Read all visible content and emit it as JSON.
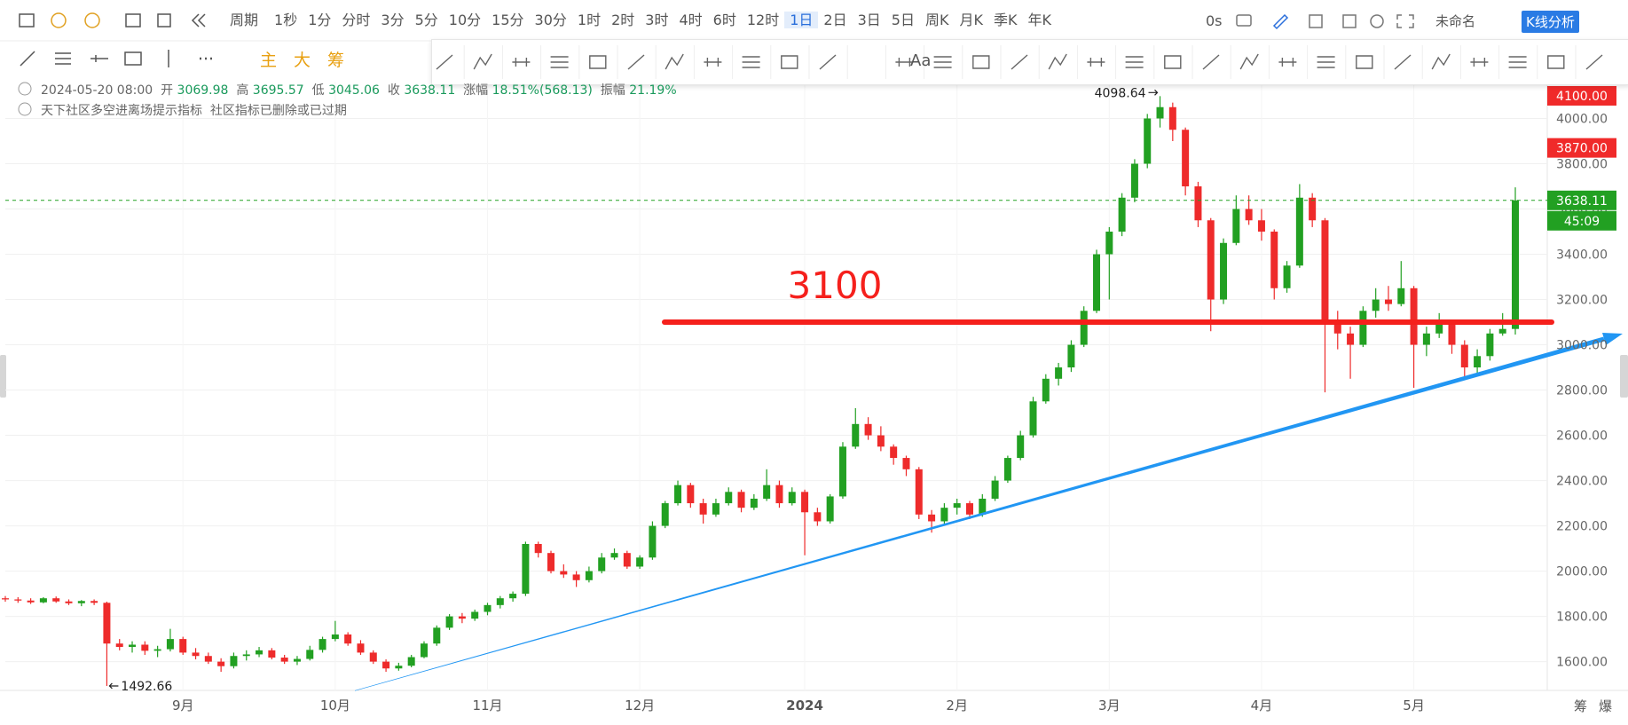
{
  "toolbar": {
    "period_label": "周期",
    "periods": [
      "1秒",
      "1分",
      "分时",
      "3分",
      "5分",
      "10分",
      "15分",
      "30分",
      "1时",
      "2时",
      "3时",
      "4时",
      "6时",
      "12时",
      "1日",
      "2日",
      "3日",
      "5日",
      "周K",
      "月K",
      "季K",
      "年K"
    ],
    "active_period": "1日",
    "timer": "0s",
    "workspace": "未命名",
    "analysis": "K线分析",
    "main": "主",
    "big": "大",
    "chips": "筹",
    "text_tool": "Aa"
  },
  "info": {
    "datetime": "2024-05-20 08:00",
    "open_label": "开",
    "open": "3069.98",
    "high_label": "高",
    "high": "3695.57",
    "low_label": "低",
    "low": "3045.06",
    "close_label": "收",
    "close": "3638.11",
    "change_label": "涨幅",
    "change": "18.51%(568.13)",
    "amp_label": "振幅",
    "amp": "21.19%",
    "indicator": "天下社区多空进离场提示指标",
    "indicator_note": "社区指标已删除或已过期"
  },
  "corner": [
    "筹",
    "爆"
  ],
  "chart_data": {
    "type": "candlestick",
    "up_color": "#22a022",
    "down_color": "#ee2b2b",
    "categories": [
      null,
      null,
      null,
      null,
      null,
      null,
      null,
      null,
      null,
      null,
      null,
      null,
      null,
      null,
      "9月",
      null,
      null,
      null,
      null,
      null,
      null,
      null,
      null,
      null,
      null,
      null,
      "10月",
      null,
      null,
      null,
      null,
      null,
      null,
      null,
      null,
      null,
      null,
      null,
      "11月",
      null,
      null,
      null,
      null,
      null,
      null,
      null,
      null,
      null,
      null,
      null,
      "12月",
      null,
      null,
      null,
      null,
      null,
      null,
      null,
      null,
      null,
      null,
      null,
      null,
      "2024",
      null,
      null,
      null,
      null,
      null,
      null,
      null,
      null,
      null,
      null,
      null,
      "2月",
      null,
      null,
      null,
      null,
      null,
      null,
      null,
      null,
      null,
      null,
      null,
      "3月",
      null,
      null,
      null,
      null,
      null,
      null,
      null,
      null,
      null,
      null,
      null,
      "4月",
      null,
      null,
      null,
      null,
      null,
      null,
      null,
      null,
      null,
      null,
      null,
      "5月",
      null,
      null,
      null,
      null,
      null,
      null,
      null,
      null
    ],
    "ohlc": [
      [
        1880,
        1890,
        1865,
        1875
      ],
      [
        1875,
        1885,
        1860,
        1870
      ],
      [
        1870,
        1880,
        1855,
        1862
      ],
      [
        1862,
        1885,
        1858,
        1880
      ],
      [
        1880,
        1888,
        1860,
        1866
      ],
      [
        1866,
        1875,
        1850,
        1858
      ],
      [
        1858,
        1872,
        1845,
        1868
      ],
      [
        1868,
        1875,
        1850,
        1860
      ],
      [
        1860,
        1865,
        1492.66,
        1680
      ],
      [
        1680,
        1700,
        1650,
        1665
      ],
      [
        1665,
        1690,
        1640,
        1675
      ],
      [
        1675,
        1690,
        1630,
        1648
      ],
      [
        1648,
        1670,
        1620,
        1655
      ],
      [
        1655,
        1745,
        1645,
        1700
      ],
      [
        1700,
        1710,
        1630,
        1640
      ],
      [
        1640,
        1660,
        1610,
        1625
      ],
      [
        1625,
        1640,
        1590,
        1600
      ],
      [
        1600,
        1615,
        1555,
        1580
      ],
      [
        1580,
        1640,
        1570,
        1625
      ],
      [
        1625,
        1650,
        1605,
        1632
      ],
      [
        1632,
        1665,
        1620,
        1650
      ],
      [
        1650,
        1660,
        1610,
        1618
      ],
      [
        1618,
        1630,
        1590,
        1600
      ],
      [
        1600,
        1625,
        1585,
        1612
      ],
      [
        1612,
        1670,
        1605,
        1652
      ],
      [
        1652,
        1710,
        1640,
        1700
      ],
      [
        1700,
        1780,
        1690,
        1720
      ],
      [
        1720,
        1730,
        1670,
        1680
      ],
      [
        1680,
        1695,
        1630,
        1640
      ],
      [
        1640,
        1650,
        1590,
        1600
      ],
      [
        1600,
        1610,
        1555,
        1570
      ],
      [
        1570,
        1595,
        1560,
        1582
      ],
      [
        1582,
        1630,
        1575,
        1620
      ],
      [
        1620,
        1690,
        1615,
        1680
      ],
      [
        1680,
        1760,
        1670,
        1750
      ],
      [
        1750,
        1810,
        1740,
        1800
      ],
      [
        1800,
        1815,
        1770,
        1790
      ],
      [
        1790,
        1830,
        1780,
        1820
      ],
      [
        1820,
        1860,
        1805,
        1850
      ],
      [
        1850,
        1890,
        1835,
        1880
      ],
      [
        1880,
        1910,
        1865,
        1900
      ],
      [
        1900,
        2130,
        1890,
        2120
      ],
      [
        2120,
        2130,
        2060,
        2080
      ],
      [
        2080,
        2090,
        1990,
        2000
      ],
      [
        2000,
        2030,
        1970,
        1985
      ],
      [
        1985,
        2000,
        1930,
        1960
      ],
      [
        1960,
        2020,
        1950,
        2000
      ],
      [
        2000,
        2080,
        1990,
        2060
      ],
      [
        2060,
        2100,
        2050,
        2080
      ],
      [
        2080,
        2090,
        2010,
        2020
      ],
      [
        2020,
        2070,
        2010,
        2060
      ],
      [
        2060,
        2220,
        2050,
        2200
      ],
      [
        2200,
        2310,
        2190,
        2300
      ],
      [
        2300,
        2400,
        2290,
        2380
      ],
      [
        2380,
        2390,
        2280,
        2300
      ],
      [
        2300,
        2320,
        2210,
        2250
      ],
      [
        2250,
        2320,
        2240,
        2300
      ],
      [
        2300,
        2370,
        2290,
        2350
      ],
      [
        2350,
        2360,
        2260,
        2280
      ],
      [
        2280,
        2340,
        2270,
        2320
      ],
      [
        2320,
        2450,
        2310,
        2380
      ],
      [
        2380,
        2400,
        2280,
        2300
      ],
      [
        2300,
        2370,
        2290,
        2350
      ],
      [
        2350,
        2360,
        2070,
        2260
      ],
      [
        2260,
        2280,
        2200,
        2220
      ],
      [
        2220,
        2340,
        2210,
        2330
      ],
      [
        2330,
        2570,
        2320,
        2550
      ],
      [
        2550,
        2720,
        2540,
        2650
      ],
      [
        2650,
        2680,
        2580,
        2600
      ],
      [
        2600,
        2640,
        2530,
        2550
      ],
      [
        2550,
        2560,
        2470,
        2500
      ],
      [
        2500,
        2510,
        2420,
        2450
      ],
      [
        2450,
        2460,
        2230,
        2250
      ],
      [
        2250,
        2270,
        2170,
        2220
      ],
      [
        2220,
        2300,
        2210,
        2280
      ],
      [
        2280,
        2320,
        2250,
        2300
      ],
      [
        2300,
        2310,
        2230,
        2250
      ],
      [
        2250,
        2340,
        2240,
        2320
      ],
      [
        2320,
        2420,
        2310,
        2400
      ],
      [
        2400,
        2510,
        2390,
        2500
      ],
      [
        2500,
        2620,
        2490,
        2600
      ],
      [
        2600,
        2770,
        2590,
        2750
      ],
      [
        2750,
        2870,
        2740,
        2850
      ],
      [
        2850,
        2920,
        2820,
        2900
      ],
      [
        2900,
        3020,
        2880,
        3000
      ],
      [
        3000,
        3170,
        2990,
        3150
      ],
      [
        3150,
        3420,
        3140,
        3400
      ],
      [
        3400,
        3520,
        3200,
        3500
      ],
      [
        3500,
        3670,
        3480,
        3650
      ],
      [
        3650,
        3820,
        3630,
        3800
      ],
      [
        3800,
        4020,
        3780,
        4000
      ],
      [
        4000,
        4098.64,
        3960,
        4050
      ],
      [
        4050,
        4070,
        3900,
        3950
      ],
      [
        3950,
        3960,
        3660,
        3700
      ],
      [
        3700,
        3720,
        3520,
        3550
      ],
      [
        3550,
        3560,
        3060,
        3200
      ],
      [
        3200,
        3470,
        3180,
        3450
      ],
      [
        3450,
        3660,
        3440,
        3600
      ],
      [
        3600,
        3660,
        3530,
        3550
      ],
      [
        3550,
        3600,
        3460,
        3500
      ],
      [
        3500,
        3510,
        3200,
        3250
      ],
      [
        3250,
        3370,
        3230,
        3350
      ],
      [
        3350,
        3710,
        3340,
        3650
      ],
      [
        3650,
        3670,
        3520,
        3550
      ],
      [
        3550,
        3560,
        2790,
        3100
      ],
      [
        3100,
        3150,
        2980,
        3050
      ],
      [
        3050,
        3080,
        2850,
        3000
      ],
      [
        3000,
        3170,
        2990,
        3150
      ],
      [
        3150,
        3250,
        3120,
        3200
      ],
      [
        3200,
        3260,
        3150,
        3180
      ],
      [
        3180,
        3370,
        3170,
        3250
      ],
      [
        3250,
        3260,
        2810,
        3000
      ],
      [
        3000,
        3080,
        2950,
        3050
      ],
      [
        3050,
        3140,
        3030,
        3100
      ],
      [
        3100,
        3110,
        2960,
        3000
      ],
      [
        3000,
        3020,
        2860,
        2900
      ],
      [
        2900,
        2980,
        2870,
        2950
      ],
      [
        2950,
        3070,
        2930,
        3050
      ],
      [
        3050,
        3140,
        3040,
        3070
      ],
      [
        3069.98,
        3695.57,
        3045.06,
        3638.11
      ]
    ],
    "ylim": [
      1473,
      4147
    ],
    "yticks": [
      {
        "value": 1600,
        "label": "1600.00"
      },
      {
        "value": 1800,
        "label": "1800.00"
      },
      {
        "value": 2000,
        "label": "2000.00"
      },
      {
        "value": 2200,
        "label": "2200.00"
      },
      {
        "value": 2400,
        "label": "2400.00"
      },
      {
        "value": 2600,
        "label": "2600.00"
      },
      {
        "value": 2800,
        "label": "2800.00"
      },
      {
        "value": 3000,
        "label": "3000.00"
      },
      {
        "value": 3200,
        "label": "3200.00"
      },
      {
        "value": 3400,
        "label": "3400.00"
      },
      {
        "value": 3600,
        "label": "3600.00"
      },
      {
        "value": 3800,
        "label": "3800.00"
      },
      {
        "value": 4000,
        "label": "4000.00"
      }
    ],
    "grid": true,
    "hline": {
      "value": 3100,
      "color": "#f5201c"
    },
    "price_tags": [
      {
        "value": 4100,
        "label": "4100.00",
        "color": "#f02a2a"
      },
      {
        "value": 3870,
        "label": "3870.00",
        "color": "#f02a2a"
      }
    ],
    "last_color": "#22a022",
    "countdown": "45:09"
  }
}
